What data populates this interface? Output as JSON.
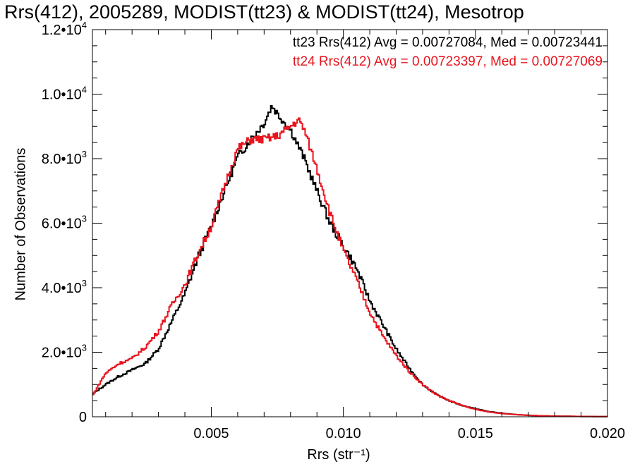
{
  "title": "Rrs(412), 2005289, MODIST(tt23) & MODIST(tt24), Mesotrop",
  "legend": {
    "tt23": "tt23 Rrs(412) Avg = 0.00727084, Med = 0.00723441",
    "tt24": "tt24 Rrs(412) Avg = 0.00723397, Med = 0.00727069"
  },
  "colors": {
    "tt23": "#000000",
    "tt24": "#e8141e"
  },
  "chart_data": {
    "type": "line",
    "step": true,
    "xlabel": "Rrs (str⁻¹)",
    "ylabel": "Number of Observations",
    "xlim": [
      0.0005,
      0.02
    ],
    "ylim": [
      0,
      12000
    ],
    "xticks": [
      {
        "v": 0.005,
        "label": "0.005"
      },
      {
        "v": 0.01,
        "label": "0.010"
      },
      {
        "v": 0.015,
        "label": "0.015"
      },
      {
        "v": 0.02,
        "label": "0.020"
      }
    ],
    "yticks": [
      {
        "v": 0,
        "label": "0"
      },
      {
        "v": 2000,
        "label": "2.0•10",
        "exp": "3"
      },
      {
        "v": 4000,
        "label": "4.0•10",
        "exp": "3"
      },
      {
        "v": 6000,
        "label": "6.0•10",
        "exp": "3"
      },
      {
        "v": 8000,
        "label": "8.0•10",
        "exp": "3"
      },
      {
        "v": 10000,
        "label": "1.0•10",
        "exp": "4"
      },
      {
        "v": 12000,
        "label": "1.2•10",
        "exp": "4"
      }
    ],
    "series": [
      {
        "key": "tt23",
        "points": [
          [
            0.0005,
            700
          ],
          [
            0.001,
            1000
          ],
          [
            0.0015,
            1250
          ],
          [
            0.002,
            1450
          ],
          [
            0.0025,
            1650
          ],
          [
            0.003,
            2100
          ],
          [
            0.0035,
            2950
          ],
          [
            0.004,
            3800
          ],
          [
            0.0045,
            4950
          ],
          [
            0.005,
            5900
          ],
          [
            0.0055,
            7000
          ],
          [
            0.006,
            8050
          ],
          [
            0.0065,
            8600
          ],
          [
            0.007,
            9100
          ],
          [
            0.0073,
            9650
          ],
          [
            0.0075,
            9400
          ],
          [
            0.008,
            8900
          ],
          [
            0.0085,
            8050
          ],
          [
            0.009,
            7000
          ],
          [
            0.0095,
            6000
          ],
          [
            0.01,
            5300
          ],
          [
            0.0105,
            4600
          ],
          [
            0.011,
            3600
          ],
          [
            0.0115,
            2850
          ],
          [
            0.012,
            2100
          ],
          [
            0.0125,
            1500
          ],
          [
            0.013,
            1000
          ],
          [
            0.0135,
            700
          ],
          [
            0.014,
            500
          ],
          [
            0.0145,
            350
          ],
          [
            0.015,
            250
          ],
          [
            0.0155,
            160
          ],
          [
            0.016,
            110
          ],
          [
            0.0165,
            70
          ],
          [
            0.017,
            45
          ],
          [
            0.0175,
            30
          ],
          [
            0.018,
            20
          ],
          [
            0.019,
            10
          ],
          [
            0.02,
            5
          ]
        ]
      },
      {
        "key": "tt24",
        "points": [
          [
            0.0005,
            650
          ],
          [
            0.001,
            1350
          ],
          [
            0.0015,
            1650
          ],
          [
            0.002,
            1800
          ],
          [
            0.0025,
            2150
          ],
          [
            0.003,
            2650
          ],
          [
            0.0035,
            3450
          ],
          [
            0.004,
            4100
          ],
          [
            0.0045,
            5050
          ],
          [
            0.005,
            5900
          ],
          [
            0.0055,
            7150
          ],
          [
            0.006,
            8300
          ],
          [
            0.0065,
            8600
          ],
          [
            0.007,
            8600
          ],
          [
            0.0075,
            8700
          ],
          [
            0.008,
            9000
          ],
          [
            0.0083,
            9200
          ],
          [
            0.0085,
            8950
          ],
          [
            0.009,
            7700
          ],
          [
            0.0095,
            6300
          ],
          [
            0.01,
            5150
          ],
          [
            0.0105,
            4250
          ],
          [
            0.011,
            3250
          ],
          [
            0.0115,
            2500
          ],
          [
            0.012,
            1900
          ],
          [
            0.0125,
            1400
          ],
          [
            0.013,
            1000
          ],
          [
            0.0135,
            700
          ],
          [
            0.014,
            500
          ],
          [
            0.0145,
            350
          ],
          [
            0.015,
            230
          ],
          [
            0.0155,
            150
          ],
          [
            0.016,
            100
          ],
          [
            0.0165,
            70
          ],
          [
            0.017,
            45
          ],
          [
            0.0175,
            30
          ],
          [
            0.018,
            20
          ],
          [
            0.019,
            10
          ],
          [
            0.02,
            5
          ]
        ]
      }
    ]
  }
}
